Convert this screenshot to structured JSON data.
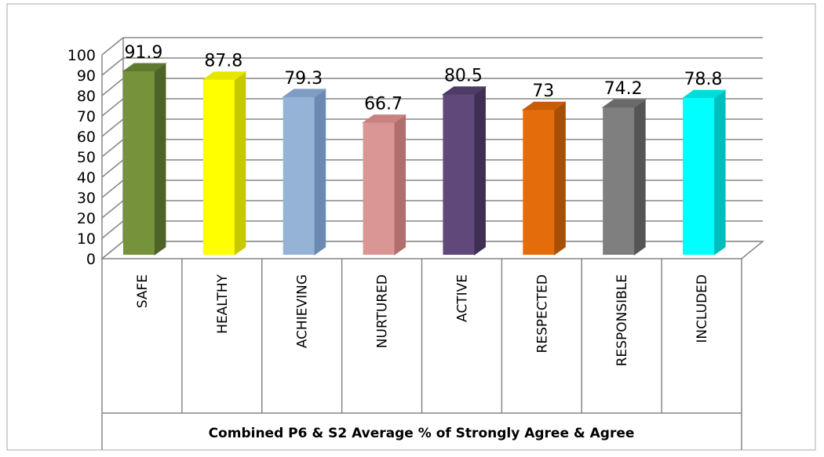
{
  "chart_data": {
    "type": "bar",
    "title": "",
    "xlabel": "Combined P6 & S2 Average % of Strongly Agree & Agree",
    "ylabel": "",
    "ylim": [
      0,
      100
    ],
    "yticks": [
      0,
      10,
      20,
      30,
      40,
      50,
      60,
      70,
      80,
      90,
      100
    ],
    "grid": true,
    "legend": "none",
    "categories": [
      "SAFE",
      "HEALTHY",
      "ACHIEVING",
      "NURTURED",
      "ACTIVE",
      "RESPECTED",
      "RESPONSIBLE",
      "INCLUDED"
    ],
    "values": [
      91.9,
      87.8,
      79.3,
      66.7,
      80.5,
      73,
      74.2,
      78.8
    ],
    "value_labels": [
      "91.9",
      "87.8",
      "79.3",
      "66.7",
      "80.5",
      "73",
      "74.2",
      "78.8"
    ],
    "colors": [
      "#76933C",
      "#FFFF00",
      "#95B3D7",
      "#DA9694",
      "#60497A",
      "#E46C0A",
      "#7F7F7F",
      "#00FFFF"
    ],
    "side_colors": [
      "#4F6228",
      "#C8C800",
      "#6A8AB2",
      "#B06E6C",
      "#3F2F55",
      "#A84F06",
      "#555555",
      "#00BEBE"
    ],
    "top_colors": [
      "#5F7A2E",
      "#E6E600",
      "#7F9DC4",
      "#C88280",
      "#4E3B66",
      "#C85D08",
      "#6A6A6A",
      "#00DCDC"
    ]
  }
}
